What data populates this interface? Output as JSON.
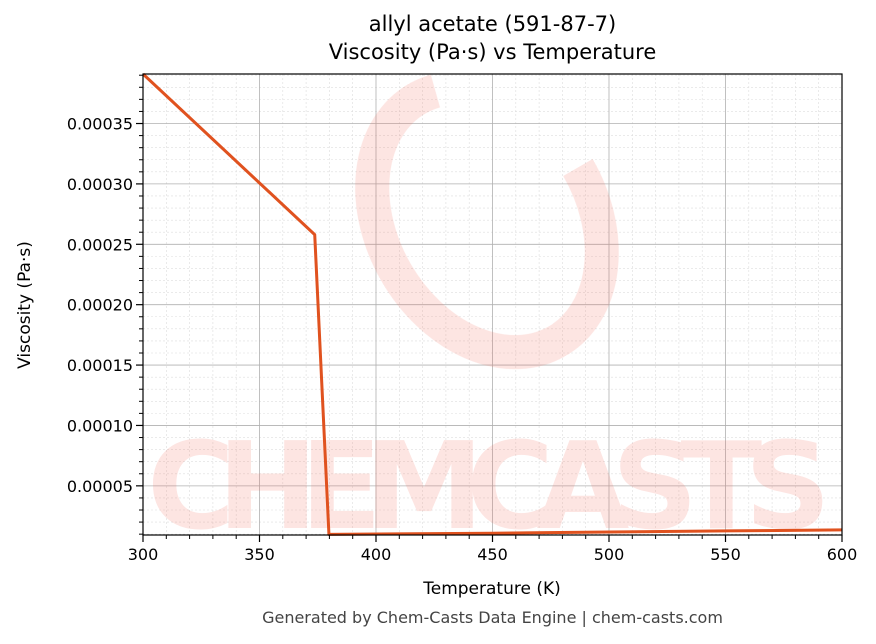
{
  "chart_data": {
    "type": "line",
    "title": "allyl acetate (591-87-7)",
    "subtitle": "Viscosity (Pa·s) vs Temperature",
    "xlabel": "Temperature (K)",
    "ylabel": "Viscosity (Pa·s)",
    "xlim": [
      300,
      600
    ],
    "ylim": [
      9.3e-06,
      0.000391
    ],
    "xticks": [
      "300",
      "350",
      "400",
      "450",
      "500",
      "550",
      "600"
    ],
    "yticks": [
      "0.00005",
      "0.00010",
      "0.00015",
      "0.00020",
      "0.00025",
      "0.00030",
      "0.00035"
    ],
    "grid": true,
    "series": [
      {
        "color": "#e0521f",
        "x": [
          300,
          373.7,
          379.8,
          450,
          500,
          550,
          600
        ],
        "y": [
          0.000391,
          0.000258,
          9.8e-06,
          1.08e-05,
          1.18e-05,
          1.27e-05,
          1.35e-05
        ]
      }
    ]
  },
  "watermark": "CHEMCASTS",
  "footer": "Generated by Chem-Casts Data Engine | chem-casts.com"
}
